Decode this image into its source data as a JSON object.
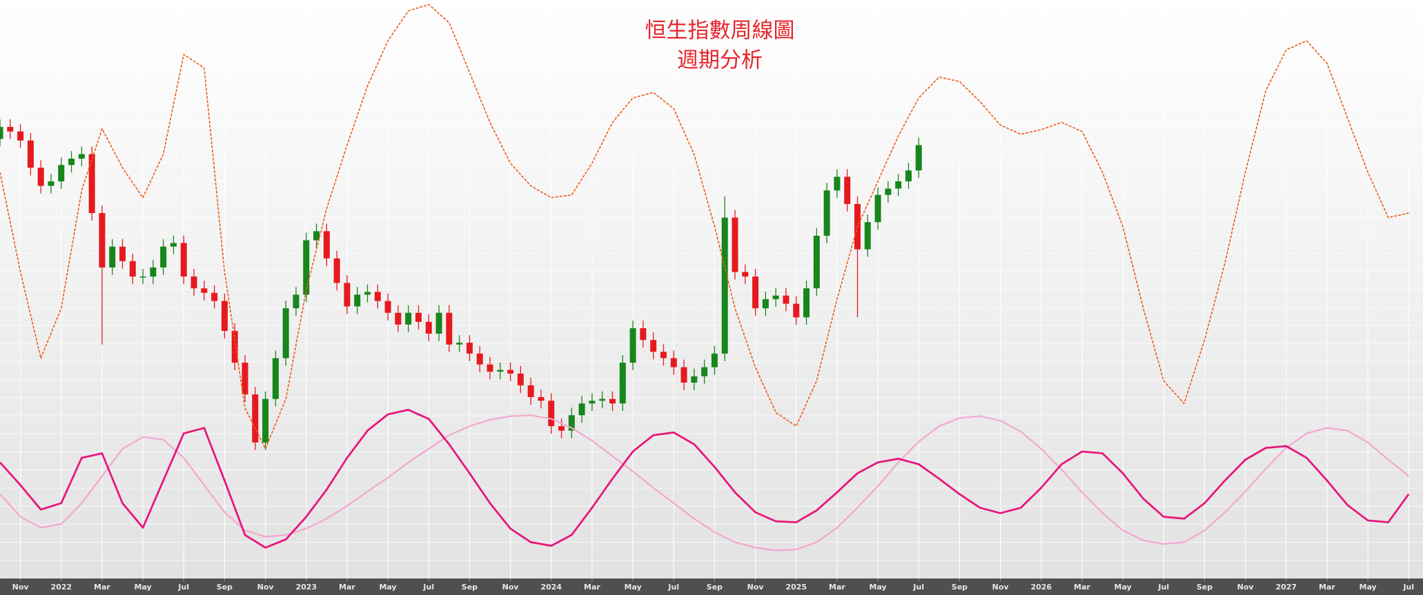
{
  "chart_data": {
    "type": "candlestick",
    "title": "恒生指數周線圖",
    "subtitle": "週期分析",
    "xlim": [
      -1,
      68.7
    ],
    "ylim": [
      10460,
      29600
    ],
    "grid": true,
    "xticks": [
      {
        "value": 0,
        "label": "Nov"
      },
      {
        "value": 2,
        "label": "2022"
      },
      {
        "value": 4,
        "label": "Mar"
      },
      {
        "value": 6,
        "label": "May"
      },
      {
        "value": 8,
        "label": "Jul"
      },
      {
        "value": 10,
        "label": "Sep"
      },
      {
        "value": 12,
        "label": "Nov"
      },
      {
        "value": 14,
        "label": "2023"
      },
      {
        "value": 16,
        "label": "Mar"
      },
      {
        "value": 18,
        "label": "May"
      },
      {
        "value": 20,
        "label": "Jul"
      },
      {
        "value": 22,
        "label": "Sep"
      },
      {
        "value": 24,
        "label": "Nov"
      },
      {
        "value": 26,
        "label": "2024"
      },
      {
        "value": 28,
        "label": "Mar"
      },
      {
        "value": 30,
        "label": "May"
      },
      {
        "value": 32,
        "label": "Jul"
      },
      {
        "value": 34,
        "label": "Sep"
      },
      {
        "value": 36,
        "label": "Nov"
      },
      {
        "value": 38,
        "label": "2025"
      },
      {
        "value": 40,
        "label": "Mar"
      },
      {
        "value": 42,
        "label": "May"
      },
      {
        "value": 44,
        "label": "Jul"
      },
      {
        "value": 46,
        "label": "Sep"
      },
      {
        "value": 48,
        "label": "Nov"
      },
      {
        "value": 50,
        "label": "2026"
      },
      {
        "value": 52,
        "label": "Mar"
      },
      {
        "value": 54,
        "label": "May"
      },
      {
        "value": 56,
        "label": "Jul"
      },
      {
        "value": 58,
        "label": "Sep"
      },
      {
        "value": 60,
        "label": "Nov"
      },
      {
        "value": 62,
        "label": "2027"
      },
      {
        "value": 64,
        "label": "Mar"
      },
      {
        "value": 66,
        "label": "May"
      },
      {
        "value": 68,
        "label": "Jul"
      }
    ],
    "candles": {
      "up_color": "#17861c",
      "down_color": "#e51a1f",
      "x": [
        -1,
        -0.5,
        0,
        0.5,
        1,
        1.5,
        2,
        2.5,
        3,
        3.5,
        4,
        4.5,
        5,
        5.5,
        6,
        6.5,
        7,
        7.5,
        8,
        8.5,
        9,
        9.5,
        10,
        10.5,
        11,
        11.5,
        12,
        12.5,
        13,
        13.5,
        14,
        14.5,
        15,
        15.5,
        16,
        16.5,
        17,
        17.5,
        18,
        18.5,
        19,
        19.5,
        20,
        20.5,
        21,
        21.5,
        22,
        22.5,
        23,
        23.5,
        24,
        24.5,
        25,
        25.5,
        26,
        26.5,
        27,
        27.5,
        28,
        28.5,
        29,
        29.5,
        30,
        30.5,
        31,
        31.5,
        32,
        32.5,
        33,
        33.5,
        34,
        34.5,
        35,
        35.5,
        36,
        36.5,
        37,
        37.5,
        38,
        38.5,
        39,
        39.5,
        40,
        40.5,
        41,
        41.5,
        42,
        42.5,
        43,
        43.5,
        44
      ],
      "open": [
        25000,
        25400,
        25250,
        24950,
        24050,
        23450,
        23600,
        24140,
        24350,
        24500,
        22550,
        20750,
        21440,
        20960,
        20450,
        20450,
        20750,
        21440,
        21560,
        20450,
        20060,
        19910,
        19640,
        18650,
        17600,
        16550,
        14960,
        16400,
        17750,
        19400,
        19850,
        21650,
        21950,
        21050,
        20240,
        19460,
        19850,
        19940,
        19640,
        19250,
        18860,
        19250,
        18950,
        18560,
        19250,
        18200,
        18260,
        17900,
        17540,
        17300,
        17360,
        17240,
        16850,
        16460,
        16340,
        15500,
        15350,
        15860,
        16250,
        16340,
        16400,
        16250,
        17600,
        18740,
        18350,
        17960,
        17750,
        17450,
        16940,
        17150,
        17450,
        17900,
        22400,
        20600,
        20450,
        19400,
        19700,
        19820,
        19550,
        19100,
        20060,
        21800,
        23300,
        23750,
        22850,
        21350,
        22250,
        23150,
        23360,
        23600,
        23960
      ],
      "high": [
        25650,
        25650,
        25500,
        25200,
        24300,
        23850,
        24390,
        24600,
        24750,
        24750,
        22800,
        21690,
        21690,
        21210,
        20700,
        21000,
        21690,
        21810,
        21810,
        20700,
        20310,
        20160,
        19890,
        18900,
        17850,
        16800,
        16650,
        18000,
        19650,
        20100,
        21900,
        22200,
        22200,
        21300,
        20490,
        20100,
        20190,
        20190,
        19890,
        19500,
        19500,
        19500,
        19200,
        19500,
        19500,
        18510,
        18510,
        18150,
        17790,
        17610,
        17610,
        17490,
        17100,
        16710,
        16590,
        15750,
        16110,
        16500,
        16590,
        16650,
        16650,
        17850,
        18990,
        18990,
        18600,
        18210,
        18000,
        17700,
        17400,
        17700,
        18150,
        23100,
        22650,
        20850,
        20700,
        19950,
        20070,
        20070,
        19800,
        20310,
        22050,
        23550,
        24000,
        24000,
        23100,
        22500,
        23400,
        23610,
        23850,
        24210,
        25050
      ],
      "low": [
        24750,
        25000,
        24700,
        23800,
        23200,
        23200,
        23350,
        23890,
        24100,
        22300,
        18200,
        20500,
        20710,
        20200,
        20200,
        20200,
        20500,
        21190,
        20200,
        19810,
        19660,
        19390,
        18400,
        17350,
        16300,
        14710,
        14710,
        16150,
        17500,
        19150,
        19600,
        21400,
        20800,
        19990,
        19210,
        19210,
        19600,
        19390,
        19000,
        18610,
        18610,
        18700,
        18310,
        18310,
        17950,
        17950,
        17650,
        17290,
        17050,
        17050,
        16990,
        16600,
        16210,
        16090,
        15250,
        15100,
        15100,
        15610,
        16000,
        16090,
        16000,
        16000,
        17350,
        18100,
        17710,
        17500,
        17200,
        16690,
        16690,
        16900,
        17200,
        17650,
        20350,
        20200,
        19150,
        19150,
        19450,
        19300,
        18850,
        18850,
        19810,
        21550,
        23050,
        22600,
        19100,
        21100,
        22000,
        22900,
        23110,
        23350,
        23710
      ],
      "close": [
        25400,
        25250,
        24950,
        24050,
        23450,
        23600,
        24140,
        24350,
        24500,
        22550,
        20750,
        21440,
        20960,
        20450,
        20450,
        20750,
        21440,
        21560,
        20450,
        20060,
        19910,
        19640,
        18650,
        17600,
        16550,
        14960,
        16400,
        17750,
        19400,
        19850,
        21650,
        21950,
        21050,
        20240,
        19460,
        19850,
        19940,
        19640,
        19250,
        18860,
        19250,
        18950,
        18560,
        19250,
        18200,
        18260,
        17900,
        17540,
        17300,
        17360,
        17240,
        16850,
        16460,
        16340,
        15500,
        15350,
        15860,
        16250,
        16340,
        16400,
        16250,
        17600,
        18740,
        18350,
        17960,
        17750,
        17450,
        16940,
        17150,
        17450,
        17900,
        22400,
        20600,
        20450,
        19400,
        19700,
        19820,
        19550,
        19100,
        20060,
        21800,
        23300,
        23750,
        22850,
        21350,
        22250,
        23150,
        23360,
        23600,
        23960,
        24800
      ]
    },
    "curves": {
      "x": [
        -1,
        0,
        1,
        2,
        3,
        4,
        5,
        6,
        7,
        8,
        9,
        10,
        11,
        12,
        13,
        14,
        15,
        16,
        17,
        18,
        19,
        20,
        21,
        22,
        23,
        24,
        25,
        26,
        27,
        28,
        29,
        30,
        31,
        32,
        33,
        34,
        35,
        36,
        37,
        38,
        39,
        40,
        41,
        42,
        43,
        44,
        45,
        46,
        47,
        48,
        49,
        50,
        51,
        52,
        53,
        54,
        55,
        56,
        57,
        58,
        59,
        60,
        61,
        62,
        63,
        64,
        65,
        66,
        67,
        68
      ],
      "series": [
        {
          "color": "#f4a6cf",
          "width": 2.2,
          "dashed": false,
          "values": [
            13250,
            12500,
            12140,
            12260,
            12950,
            13850,
            14750,
            15140,
            15050,
            14450,
            13550,
            12650,
            12050,
            11840,
            11900,
            12110,
            12440,
            12860,
            13340,
            13790,
            14300,
            14750,
            15200,
            15500,
            15710,
            15830,
            15860,
            15740,
            15440,
            15020,
            14510,
            14000,
            13460,
            12950,
            12440,
            11990,
            11660,
            11480,
            11390,
            11420,
            11660,
            12140,
            12800,
            13520,
            14300,
            14990,
            15500,
            15770,
            15830,
            15680,
            15320,
            14750,
            14060,
            13310,
            12620,
            12050,
            11720,
            11600,
            11660,
            12050,
            12650,
            13340,
            14090,
            14780,
            15260,
            15440,
            15350,
            14960,
            14390,
            13850
          ]
        },
        {
          "color": "#e8167c",
          "width": 2.8,
          "dashed": false,
          "values": [
            14300,
            13550,
            12740,
            12950,
            14450,
            14600,
            12950,
            12140,
            13700,
            15260,
            15440,
            13700,
            11900,
            11480,
            11750,
            12500,
            13400,
            14450,
            15350,
            15890,
            16040,
            15740,
            14900,
            13940,
            12950,
            12110,
            11660,
            11540,
            11900,
            12800,
            13760,
            14660,
            15200,
            15290,
            14900,
            14150,
            13310,
            12650,
            12350,
            12320,
            12710,
            13310,
            13940,
            14300,
            14420,
            14240,
            13760,
            13250,
            12800,
            12620,
            12800,
            13460,
            14240,
            14660,
            14600,
            13940,
            13100,
            12500,
            12440,
            12950,
            13700,
            14390,
            14780,
            14840,
            14450,
            13700,
            12890,
            12380,
            12320,
            13250
          ]
        },
        {
          "color": "#ee5a10",
          "width": 1.6,
          "dashed": true,
          "values": [
            23900,
            20600,
            17750,
            19400,
            23300,
            25340,
            24050,
            23060,
            24500,
            27800,
            27350,
            20600,
            16100,
            14750,
            16400,
            20000,
            22700,
            24800,
            26750,
            28250,
            29240,
            29450,
            28850,
            27200,
            25550,
            24200,
            23450,
            23060,
            23150,
            24200,
            25550,
            26360,
            26540,
            26000,
            24500,
            22100,
            19400,
            17450,
            15950,
            15500,
            17000,
            19700,
            22100,
            23600,
            25100,
            26360,
            27050,
            26900,
            26240,
            25460,
            25160,
            25310,
            25550,
            25250,
            23900,
            22100,
            19400,
            17000,
            16250,
            18350,
            20900,
            23900,
            26600,
            27950,
            28250,
            27500,
            25700,
            23900,
            22400,
            22550
          ]
        }
      ]
    }
  }
}
